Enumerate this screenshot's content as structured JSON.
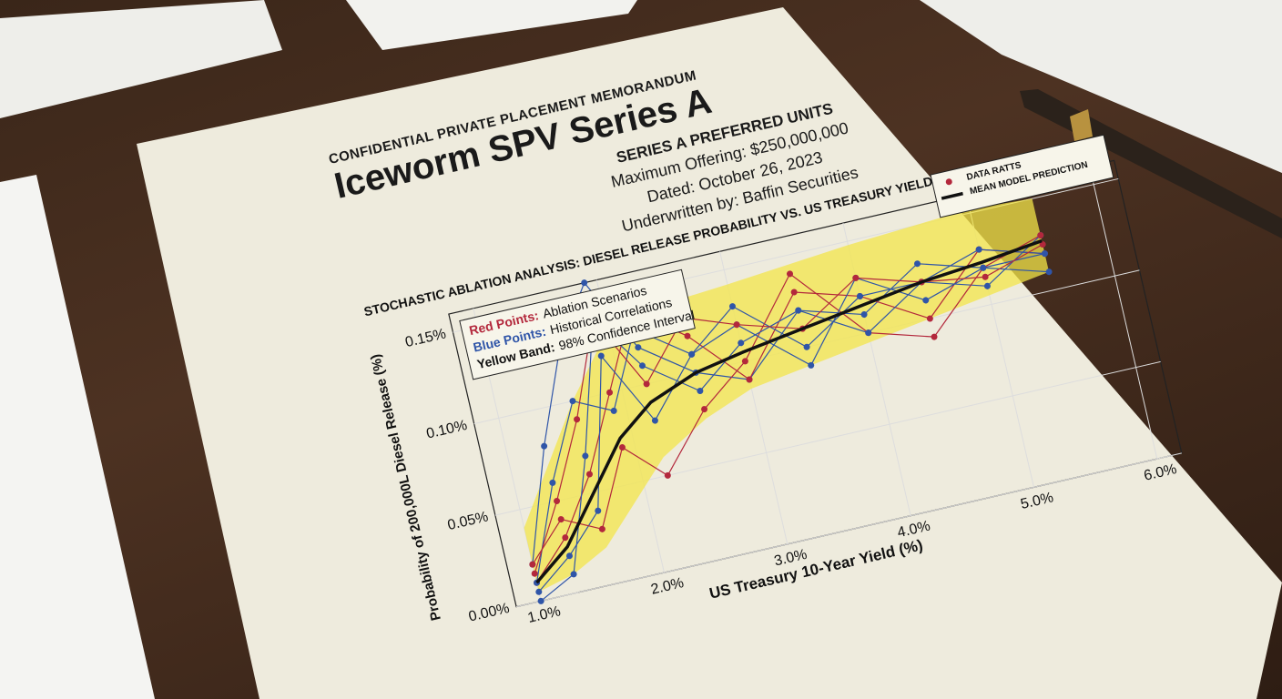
{
  "header": {
    "confidential": "CONFIDENTIAL PRIVATE PLACEMENT MEMORANDUM",
    "title": "Iceworm SPV Series A",
    "subtitle": "SERIES A PREFERRED UNITS",
    "offering": "Maximum Offering: $250,000,000",
    "dated": "Dated: October 26, 2023",
    "underwriter": "Underwritten by: Baffin Securities"
  },
  "chart_data": {
    "type": "line",
    "title": "STOCHASTIC ABLATION ANALYSIS: DIESEL RELEASE PROBABILITY VS. US TREASURY YIELD RATES",
    "x_label": "US Treasury 10-Year Yield (%)",
    "y_label": "Probability of 200,000L Diesel Release (%)",
    "annotation": [
      {
        "key": "Red Points:",
        "text": "Ablation Scenarios",
        "color": "#b3283c"
      },
      {
        "key": "Blue Points:",
        "text": "Historical Correlations",
        "color": "#2f55a8"
      },
      {
        "key": "Yellow Band:",
        "text": "98% Confidence Interval",
        "color": "#111111"
      }
    ],
    "x": [
      1.0,
      1.3,
      1.6,
      1.9,
      2.2,
      2.6,
      3.0,
      3.5,
      4.0,
      4.5,
      5.0,
      5.5
    ],
    "xlim": [
      0.8,
      6.2
    ],
    "ylim": [
      0,
      0.16
    ],
    "xticks": [
      {
        "value": 1.0,
        "label": "1.0%"
      },
      {
        "value": 2.0,
        "label": "2.0%"
      },
      {
        "value": 3.0,
        "label": "3.0%"
      },
      {
        "value": 4.0,
        "label": "4.0%"
      },
      {
        "value": 5.0,
        "label": "5.0%"
      },
      {
        "value": 6.0,
        "label": "6.0%"
      }
    ],
    "yticks": [
      {
        "value": 0,
        "label": "0.00%"
      },
      {
        "value": 0.05,
        "label": "0.05%"
      },
      {
        "value": 0.1,
        "label": "0.10%"
      },
      {
        "value": 0.15,
        "label": "0.15%"
      }
    ],
    "grid": true,
    "band": {
      "color": "#f3e64a",
      "lower": [
        0.005,
        0.01,
        0.02,
        0.04,
        0.06,
        0.075,
        0.085,
        0.09,
        0.095,
        0.1,
        0.105,
        0.11
      ],
      "upper": [
        0.04,
        0.07,
        0.1,
        0.125,
        0.135,
        0.14,
        0.142,
        0.145,
        0.148,
        0.15,
        0.152,
        0.15
      ]
    },
    "series": [
      {
        "name": "DATA RATTS",
        "color": "#b3283c",
        "marker": true,
        "values": [
          0.015,
          0.05,
          0.09,
          0.14,
          0.1,
          0.13,
          0.12,
          0.11,
          0.13,
          0.12,
          0.115,
          0.125
        ]
      },
      {
        "name": "MEAN MODEL PREDICTION",
        "color": "#111111",
        "marker": false,
        "values": [
          0.01,
          0.025,
          0.05,
          0.075,
          0.09,
          0.1,
          0.105,
          0.11,
          0.115,
          0.12,
          0.123,
          0.127
        ]
      }
    ],
    "scenarios": [
      {
        "color": "#2f55a8",
        "values": [
          0.02,
          0.08,
          0.13,
          0.16,
          0.12,
          0.1,
          0.09,
          0.12,
          0.11,
          0.13,
          0.12,
          0.12
        ]
      },
      {
        "color": "#b3283c",
        "values": [
          0.01,
          0.03,
          0.06,
          0.1,
          0.14,
          0.12,
          0.09,
          0.13,
          0.12,
          0.1,
          0.13,
          0.12
        ]
      },
      {
        "color": "#2f55a8",
        "values": [
          0.005,
          0.02,
          0.04,
          0.12,
          0.08,
          0.11,
          0.13,
          0.1,
          0.12,
          0.12,
          0.11,
          0.13
        ]
      },
      {
        "color": "#b3283c",
        "values": [
          0.02,
          0.04,
          0.03,
          0.07,
          0.05,
          0.08,
          0.1,
          0.14,
          0.1,
          0.09,
          0.12,
          0.13
        ]
      },
      {
        "color": "#2f55a8",
        "values": [
          0.01,
          0.06,
          0.1,
          0.09,
          0.13,
          0.11,
          0.12,
          0.09,
          0.13,
          0.11,
          0.12,
          0.11
        ]
      },
      {
        "color": "#2f55a8",
        "values": [
          0.0,
          0.01,
          0.07,
          0.14,
          0.11,
          0.09,
          0.11,
          0.12,
          0.1,
          0.12,
          0.13,
          0.12
        ]
      }
    ]
  }
}
